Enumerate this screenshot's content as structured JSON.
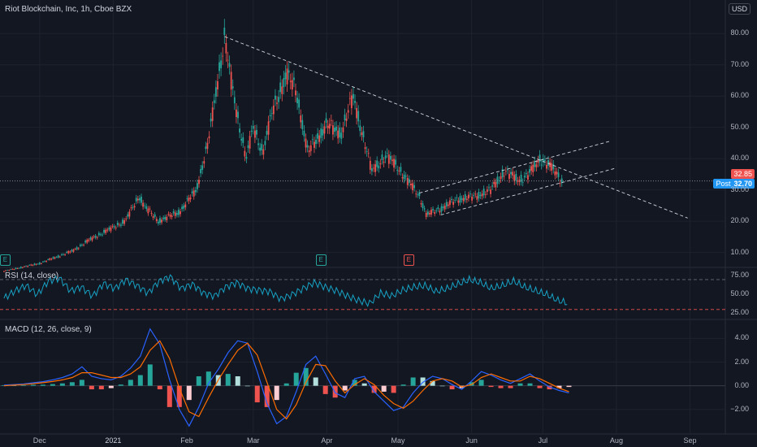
{
  "header": {
    "title": "Riot Blockchain, Inc, 1h, Cboe BZX",
    "currency": "USD"
  },
  "price_tags": {
    "last": "32.85",
    "post_label": "Post",
    "post_value": "32.70"
  },
  "events": [
    {
      "label": "E",
      "color": "#26a69a",
      "x_date": "2020-11-16"
    },
    {
      "label": "E",
      "color": "#26a69a",
      "x_date": "2021-03-29"
    },
    {
      "label": "E",
      "color": "#ef5350",
      "x_date": "2021-05-05"
    }
  ],
  "chart_data": [
    {
      "type": "candlestick",
      "title": "Riot Blockchain, Inc, 1h, Cboe BZX",
      "ylabel": "USD",
      "y_ticks": [
        10,
        20,
        30,
        40,
        50,
        60,
        70,
        80
      ],
      "ylim": [
        6,
        85
      ],
      "x_ticks": [
        "Dec",
        "2021",
        "Feb",
        "Mar",
        "Apr",
        "May",
        "Jun",
        "Jul",
        "Aug",
        "Sep"
      ],
      "grid": true,
      "last_price": 32.85,
      "post_price": 32.7,
      "price_path": [
        [
          "2020-11-16",
          4.0
        ],
        [
          "2020-12-01",
          6.5
        ],
        [
          "2020-12-15",
          10.5
        ],
        [
          "2020-12-22",
          14.0
        ],
        [
          "2021-01-06",
          20.0
        ],
        [
          "2021-01-12",
          28.0
        ],
        [
          "2021-01-14",
          25.0
        ],
        [
          "2021-01-20",
          20.0
        ],
        [
          "2021-01-29",
          23.0
        ],
        [
          "2021-02-05",
          30.0
        ],
        [
          "2021-02-10",
          45.0
        ],
        [
          "2021-02-14",
          65.0
        ],
        [
          "2021-02-17",
          79.0
        ],
        [
          "2021-02-19",
          68.0
        ],
        [
          "2021-02-22",
          55.0
        ],
        [
          "2021-02-26",
          40.0
        ],
        [
          "2021-03-01",
          50.0
        ],
        [
          "2021-03-05",
          42.0
        ],
        [
          "2021-03-09",
          55.0
        ],
        [
          "2021-03-15",
          67.0
        ],
        [
          "2021-03-19",
          62.0
        ],
        [
          "2021-03-24",
          42.0
        ],
        [
          "2021-04-01",
          51.0
        ],
        [
          "2021-04-07",
          48.0
        ],
        [
          "2021-04-12",
          60.0
        ],
        [
          "2021-04-16",
          48.0
        ],
        [
          "2021-04-20",
          36.0
        ],
        [
          "2021-04-26",
          41.0
        ],
        [
          "2021-04-30",
          38.0
        ],
        [
          "2021-05-05",
          33.0
        ],
        [
          "2021-05-10",
          28.0
        ],
        [
          "2021-05-13",
          22.0
        ],
        [
          "2021-05-19",
          24.0
        ],
        [
          "2021-05-26",
          27.0
        ],
        [
          "2021-06-03",
          28.0
        ],
        [
          "2021-06-09",
          30.0
        ],
        [
          "2021-06-15",
          36.0
        ],
        [
          "2021-06-21",
          33.0
        ],
        [
          "2021-06-25",
          35.0
        ],
        [
          "2021-06-30",
          40.0
        ],
        [
          "2021-07-05",
          37.0
        ],
        [
          "2021-07-09",
          32.85
        ]
      ],
      "trendlines": [
        {
          "style": "dashed",
          "from": [
            "2021-02-17",
            79.0
          ],
          "to": [
            "2021-08-31",
            21.0
          ]
        },
        {
          "style": "dashed",
          "from": [
            "2021-05-10",
            29.0
          ],
          "to": [
            "2021-07-29",
            45.5
          ]
        },
        {
          "style": "dashed",
          "from": [
            "2021-05-19",
            22.0
          ],
          "to": [
            "2021-08-01",
            37.0
          ]
        }
      ]
    },
    {
      "type": "line",
      "title": "RSI (14, close)",
      "y_ticks": [
        25.0,
        50.0,
        75.0
      ],
      "ylim": [
        20,
        82
      ],
      "bands": [
        70,
        30
      ],
      "series": [
        {
          "values": [
            45,
            55,
            62,
            50,
            68,
            72,
            55,
            60,
            48,
            65,
            58,
            70,
            62,
            52,
            68,
            74,
            58,
            64,
            52,
            48,
            60,
            66,
            58,
            56,
            54,
            44,
            50,
            58,
            66,
            60,
            55,
            48,
            42,
            38,
            52,
            48,
            56,
            60,
            62,
            54,
            58,
            64,
            70,
            66,
            58,
            62,
            68,
            60,
            55,
            50,
            42,
            38
          ]
        }
      ]
    },
    {
      "type": "bar",
      "title": "MACD (12, 26, close, 9)",
      "y_ticks": [
        -2.0,
        0.0,
        2.0,
        4.0
      ],
      "ylim": [
        -3.8,
        5.4
      ],
      "series": [
        {
          "values": [
            0.05,
            0.1,
            0.15,
            0.25,
            0.35,
            0.5,
            0.7,
            1.0,
            1.6,
            0.8,
            0.6,
            0.5,
            0.8,
            1.5,
            2.5,
            4.8,
            3.5,
            0.5,
            -2.0,
            -3.4,
            -1.8,
            0.2,
            1.4,
            2.8,
            3.8,
            3.6,
            1.2,
            -1.5,
            -3.2,
            -2.6,
            -0.5,
            1.8,
            2.5,
            1.0,
            -0.6,
            -1.0,
            0.6,
            0.8,
            -0.5,
            -1.3,
            -2.1,
            -1.8,
            -0.6,
            0.3,
            0.8,
            0.6,
            0.1,
            -0.3,
            0.4,
            1.2,
            0.9,
            0.5,
            0.2,
            0.6,
            1.0,
            0.4,
            -0.1,
            -0.4,
            -0.6
          ]
        },
        {
          "values": [
            0.0,
            0.06,
            0.1,
            0.17,
            0.26,
            0.36,
            0.5,
            0.7,
            1.1,
            1.1,
            0.9,
            0.7,
            0.7,
            1.0,
            1.6,
            3.0,
            3.8,
            2.3,
            -0.2,
            -2.2,
            -2.6,
            -1.0,
            0.5,
            1.8,
            3.0,
            3.6,
            2.6,
            0.3,
            -2.0,
            -2.8,
            -1.6,
            0.3,
            1.8,
            1.7,
            0.4,
            -0.6,
            0.1,
            0.6,
            0.1,
            -0.8,
            -1.5,
            -1.9,
            -1.3,
            -0.4,
            0.4,
            0.6,
            0.4,
            -0.1,
            0.1,
            0.7,
            1.0,
            0.7,
            0.4,
            0.4,
            0.8,
            0.6,
            0.2,
            -0.2,
            -0.5
          ]
        }
      ]
    }
  ]
}
